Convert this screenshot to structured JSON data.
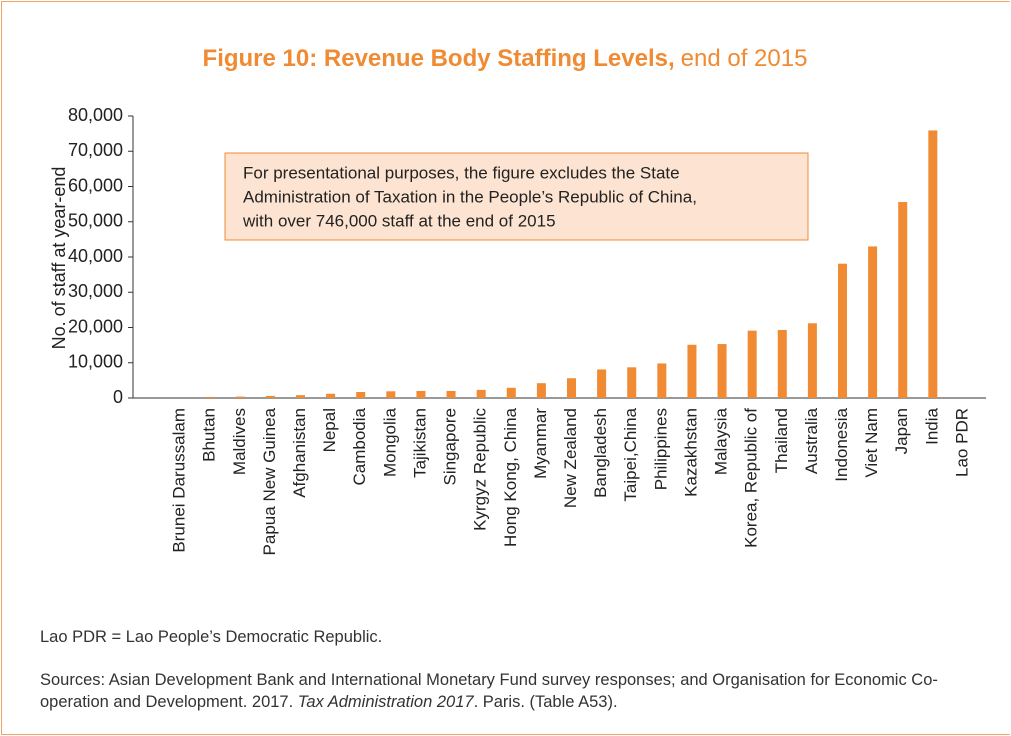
{
  "chart_data": {
    "type": "bar",
    "title": "Figure 10: Revenue Body Staffing Levels,",
    "subtitle": "end of 2015",
    "y_label": "No. of staff at year-end",
    "annotation": [
      "For presentational purposes, the figure excludes the State",
      "Administration of Taxation in the People’s Republic of China,",
      "with over 746,000 staff at the end of 2015"
    ],
    "categories": [
      "Brunei Darussalam",
      "Bhutan",
      "Maldives",
      "Papua New Guinea",
      "Afghanistan",
      "Nepal",
      "Cambodia",
      "Mongolia",
      "Tajikistan",
      "Singapore",
      "Kyrgyz Republic",
      "Hong Kong, China",
      "Myanmar",
      "New Zealand",
      "Bangladesh",
      "Taipei,China",
      "Philippines",
      "Kazakhstan",
      "Malaysia",
      "Korea, Republic of",
      "Thailand",
      "Australia",
      "Indonesia",
      "Viet Nam",
      "Japan",
      "India",
      "Lao PDR"
    ],
    "values": [
      null,
      300,
      400,
      600,
      800,
      1200,
      1700,
      1900,
      2000,
      2000,
      2300,
      2900,
      4200,
      5600,
      8100,
      8700,
      9800,
      15100,
      15300,
      19100,
      19300,
      21200,
      38100,
      43000,
      55600,
      75900,
      null
    ],
    "color": "#f08a33",
    "ylim": [
      0,
      80000
    ],
    "yticks": [
      0,
      {
        "value": 10000,
        "label": "10,000"
      },
      {
        "value": 20000,
        "label": "20,000"
      },
      {
        "value": 30000,
        "label": "30,000"
      },
      {
        "value": 40000,
        "label": "40,000"
      },
      {
        "value": 50000,
        "label": "50,000"
      },
      {
        "value": 60000,
        "label": "60,000"
      },
      {
        "value": 70000,
        "label": "70,000"
      },
      {
        "value": 80000,
        "label": "80,000"
      }
    ],
    "notes": {
      "abbreviation": "Lao PDR = Lao People’s Democratic Republic.",
      "source": [
        "Sources: Asian Development Bank and International Monetary Fund survey responses; and Organisation for Economic Co-operation and Development. 2017. ",
        "Tax Administration 2017",
        ". Paris. (Table A53)."
      ]
    }
  }
}
